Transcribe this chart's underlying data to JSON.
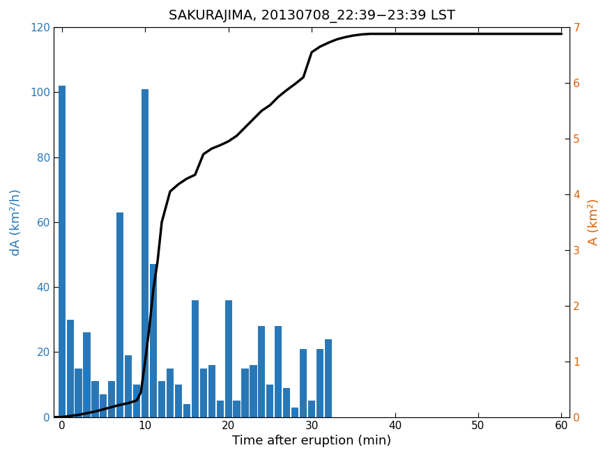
{
  "title": "SAKURAJIMA, 20130708_22:39−23:39 LST",
  "xlabel": "Time after eruption (min)",
  "ylabel_left": "dA (km²/h)",
  "ylabel_right": "A (km²)",
  "bar_color": "#2878b8",
  "line_color": "#000000",
  "left_ylim": [
    0,
    120
  ],
  "right_ylim": [
    0,
    7
  ],
  "xlim": [
    -1,
    61
  ],
  "bar_positions": [
    0,
    1,
    2,
    3,
    4,
    5,
    6,
    7,
    8,
    9,
    10,
    11,
    12,
    13,
    14,
    15,
    16,
    17,
    18,
    19,
    20,
    21,
    22,
    23,
    24,
    25,
    26,
    27,
    28,
    29,
    30,
    31,
    32,
    33,
    34,
    35,
    36,
    37,
    38,
    39,
    40,
    41,
    42,
    43,
    44,
    45,
    46,
    47,
    48,
    49,
    50,
    51,
    52,
    53,
    54,
    55,
    56,
    57,
    58,
    59
  ],
  "bar_heights": [
    102,
    30,
    15,
    26,
    11,
    7,
    11,
    63,
    19,
    10,
    101,
    47,
    11,
    15,
    10,
    4,
    36,
    15,
    16,
    5,
    36,
    5,
    15,
    16,
    28,
    10,
    28,
    9,
    3,
    21,
    5,
    21,
    24,
    0,
    0,
    0,
    0,
    0,
    0,
    0,
    0,
    0,
    0,
    0,
    0,
    0,
    0,
    0,
    0,
    0,
    0,
    0,
    0,
    0,
    0,
    0,
    0,
    0,
    0,
    0
  ],
  "line_x": [
    -1,
    0,
    1,
    2,
    3,
    4,
    5,
    6,
    7,
    8,
    9,
    9.5,
    10,
    10.5,
    11,
    11.5,
    12,
    13,
    14,
    15,
    16,
    17,
    18,
    19,
    20,
    21,
    22,
    23,
    24,
    25,
    26,
    27,
    28,
    29,
    30,
    31,
    32,
    33,
    34,
    35,
    36,
    37,
    38,
    39,
    40,
    41,
    42,
    43,
    44,
    45,
    46,
    47,
    48,
    49,
    50,
    51,
    52,
    53,
    54,
    55,
    56,
    57,
    58,
    59,
    60
  ],
  "line_y": [
    0.0,
    0.0,
    0.02,
    0.04,
    0.07,
    0.1,
    0.14,
    0.18,
    0.22,
    0.25,
    0.3,
    0.45,
    1.0,
    1.6,
    2.3,
    2.8,
    3.5,
    4.05,
    4.18,
    4.28,
    4.35,
    4.72,
    4.82,
    4.88,
    4.95,
    5.05,
    5.2,
    5.35,
    5.5,
    5.6,
    5.75,
    5.87,
    5.98,
    6.1,
    6.55,
    6.65,
    6.72,
    6.78,
    6.82,
    6.85,
    6.87,
    6.88,
    6.88,
    6.88,
    6.88,
    6.88,
    6.88,
    6.88,
    6.88,
    6.88,
    6.88,
    6.88,
    6.88,
    6.88,
    6.88,
    6.88,
    6.88,
    6.88,
    6.88,
    6.88,
    6.88,
    6.88,
    6.88,
    6.88,
    6.88
  ],
  "xticks": [
    0,
    10,
    20,
    30,
    40,
    50,
    60
  ],
  "left_yticks": [
    0,
    20,
    40,
    60,
    80,
    100,
    120
  ],
  "right_yticks": [
    0,
    1,
    2,
    3,
    4,
    5,
    6,
    7
  ],
  "bar_width": 0.85,
  "title_fontsize": 14,
  "label_fontsize": 13,
  "tick_fontsize": 11,
  "line_width": 2.5
}
